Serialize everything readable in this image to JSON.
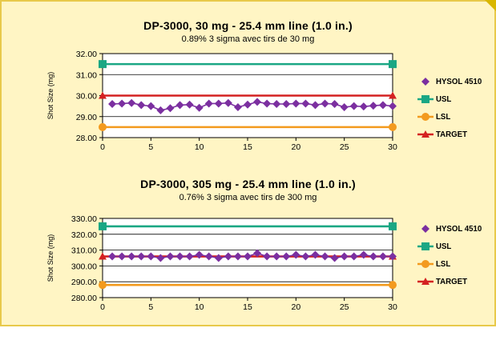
{
  "chart_data": [
    {
      "type": "line",
      "title": "DP-3000, 30 mg - 25.4 mm line (1.0 in.)",
      "subtitle": "0.89% 3 sigma avec tirs de 30 mg",
      "ylabel": "Shot Size (mg)",
      "xlabel": "",
      "xlim": [
        0,
        30
      ],
      "ylim": [
        28.0,
        32.0
      ],
      "x_ticks": [
        "0",
        "5",
        "10",
        "15",
        "20",
        "25",
        "30"
      ],
      "y_ticks": [
        "32.00",
        "31.00",
        "30.00",
        "29.00",
        "28.00"
      ],
      "grid": true,
      "legend_position": "right",
      "series": [
        {
          "name": "HYSOL 4510",
          "marker": "diamond",
          "color": "#7b2fa0",
          "x": [
            1,
            2,
            3,
            4,
            5,
            6,
            7,
            8,
            9,
            10,
            11,
            12,
            13,
            14,
            15,
            16,
            17,
            18,
            19,
            20,
            21,
            22,
            23,
            24,
            25,
            26,
            27,
            28,
            29,
            30
          ],
          "values": [
            29.6,
            29.62,
            29.65,
            29.55,
            29.5,
            29.3,
            29.4,
            29.55,
            29.57,
            29.42,
            29.62,
            29.62,
            29.65,
            29.45,
            29.57,
            29.7,
            29.62,
            29.6,
            29.6,
            29.62,
            29.62,
            29.55,
            29.62,
            29.6,
            29.45,
            29.5,
            29.48,
            29.52,
            29.55,
            29.5
          ]
        },
        {
          "name": "USL",
          "marker": "square",
          "color": "#1aa784",
          "x": [
            0,
            30
          ],
          "values": [
            31.5,
            31.5
          ]
        },
        {
          "name": "LSL",
          "marker": "circle",
          "color": "#f39a1e",
          "x": [
            0,
            30
          ],
          "values": [
            28.5,
            28.5
          ]
        },
        {
          "name": "TARGET",
          "marker": "triangle",
          "color": "#d42121",
          "x": [
            0,
            30
          ],
          "values": [
            30.0,
            30.0
          ]
        }
      ]
    },
    {
      "type": "line",
      "title": "DP-3000, 305 mg - 25.4 mm line (1.0 in.)",
      "subtitle": "0.76% 3 sigma avec tirs de 300 mg",
      "ylabel": "Shot Size (mg)",
      "xlabel": "",
      "xlim": [
        0,
        30
      ],
      "ylim": [
        280.0,
        330.0
      ],
      "x_ticks": [
        "0",
        "5",
        "10",
        "15",
        "20",
        "25",
        "30"
      ],
      "y_ticks": [
        "330.00",
        "320.00",
        "310.00",
        "300.00",
        "290.00",
        "280.00"
      ],
      "grid": true,
      "legend_position": "right",
      "series": [
        {
          "name": "HYSOL 4510",
          "marker": "diamond",
          "color": "#7b2fa0",
          "x": [
            1,
            2,
            3,
            4,
            5,
            6,
            7,
            8,
            9,
            10,
            11,
            12,
            13,
            14,
            15,
            16,
            17,
            18,
            19,
            20,
            21,
            22,
            23,
            24,
            25,
            26,
            27,
            28,
            29,
            30
          ],
          "values": [
            306,
            306,
            306,
            306,
            306,
            305,
            306,
            306,
            306,
            307,
            306,
            305,
            306,
            306,
            306,
            308,
            306,
            306,
            306,
            307,
            306,
            307,
            306,
            305,
            306,
            306,
            307,
            306,
            306,
            306
          ]
        },
        {
          "name": "USL",
          "marker": "square",
          "color": "#1aa784",
          "x": [
            0,
            30
          ],
          "values": [
            325,
            325
          ]
        },
        {
          "name": "LSL",
          "marker": "circle",
          "color": "#f39a1e",
          "x": [
            0,
            30
          ],
          "values": [
            288,
            288
          ]
        },
        {
          "name": "TARGET",
          "marker": "triangle",
          "color": "#d42121",
          "x": [
            0,
            30
          ],
          "values": [
            306,
            306
          ]
        }
      ]
    }
  ]
}
